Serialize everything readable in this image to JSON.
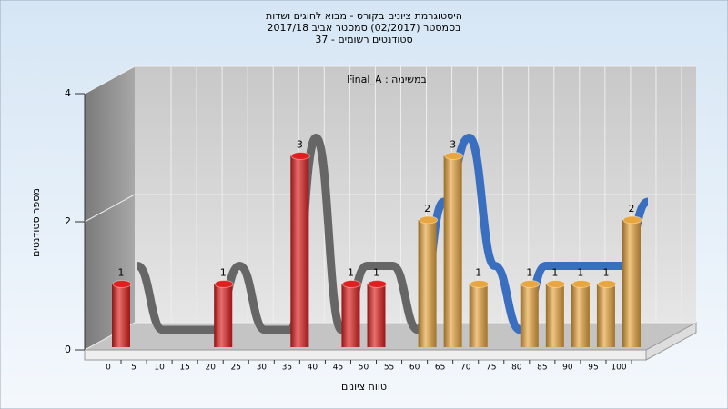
{
  "chart_data": {
    "type": "bar",
    "title": [
      "היסטוגרמת ציונים בקורס - מבוא לחוגים ושדות",
      "בסמסטר (02/2017) סמסטר אביב 2017/18",
      "סטודנטים רשומים - 37"
    ],
    "subtitle": "במשימה : Final_A",
    "x_label": "טווח ציונים",
    "y_label": "מספר סטודנטים",
    "categories": [
      "0",
      "5",
      "10",
      "15",
      "20",
      "25",
      "30",
      "35",
      "40",
      "45",
      "50",
      "55",
      "60",
      "65",
      "70",
      "75",
      "80",
      "85",
      "90",
      "95",
      "100"
    ],
    "values": [
      1,
      0,
      0,
      0,
      1,
      0,
      0,
      3,
      0,
      1,
      1,
      0,
      2,
      3,
      1,
      0,
      1,
      1,
      1,
      1,
      2
    ],
    "colors": [
      "#e02020",
      "#e02020",
      "#e02020",
      "#e02020",
      "#e02020",
      "#e02020",
      "#e02020",
      "#e02020",
      "#e02020",
      "#e02020",
      "#e02020",
      "#e02020",
      "#e8a640",
      "#e8a640",
      "#e8a640",
      "#e8a640",
      "#e8a640",
      "#e8a640",
      "#e8a640",
      "#e8a640",
      "#e8a640"
    ],
    "trend_colors": [
      "#666666",
      "#3a6fc0"
    ],
    "ylim": [
      0,
      4
    ],
    "yticks": [
      0,
      2,
      4
    ],
    "grid": true
  }
}
